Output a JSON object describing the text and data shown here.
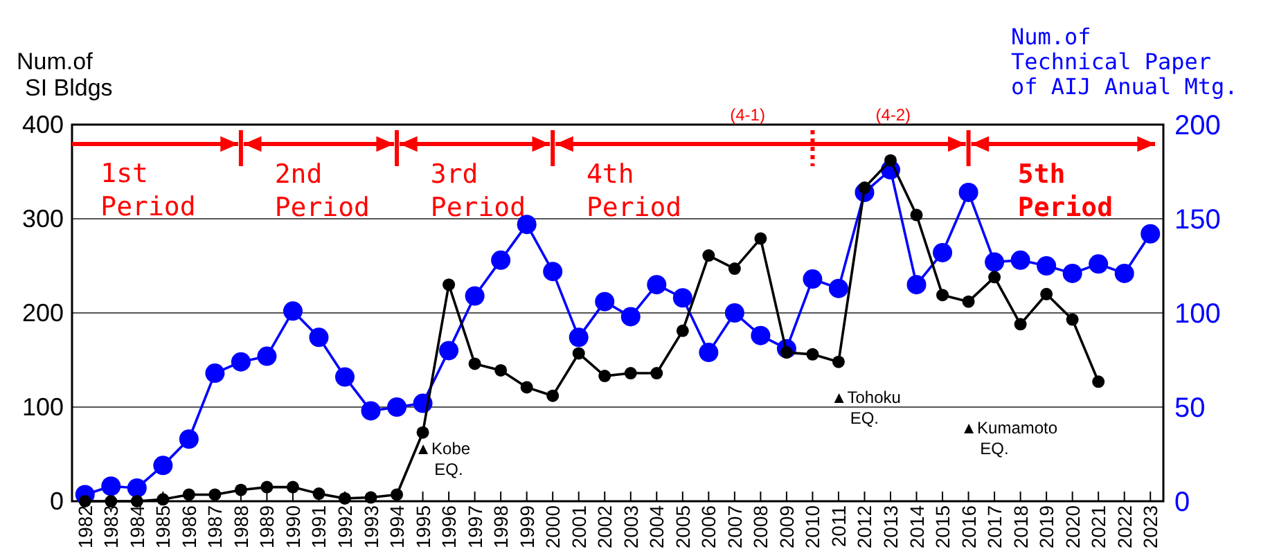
{
  "chart_data": {
    "type": "line",
    "ylabel": "Num.of\nSI Bldgs",
    "y2label": "Num.of\nTechnical Paper\nof AIJ Anual Mtg.",
    "categories": [
      "1982",
      "1983",
      "1984",
      "1985",
      "1986",
      "1987",
      "1988",
      "1989",
      "1990",
      "1991",
      "1992",
      "1993",
      "1994",
      "1995",
      "1996",
      "1997",
      "1998",
      "1999",
      "2000",
      "2001",
      "2002",
      "2003",
      "2004",
      "2005",
      "2006",
      "2007",
      "2008",
      "2009",
      "2010",
      "2011",
      "2012",
      "2013",
      "2014",
      "2015",
      "2016",
      "2017",
      "2018",
      "2019",
      "2020",
      "2021",
      "2022",
      "2023"
    ],
    "series": [
      {
        "color": "#000000",
        "values": [
          0,
          0,
          0,
          2,
          7,
          7,
          12,
          15,
          15,
          8,
          3,
          4,
          7,
          73,
          230,
          146,
          139,
          121,
          112,
          157,
          133,
          136,
          136,
          181,
          261,
          247,
          279,
          158,
          156,
          148,
          333,
          362,
          304,
          219,
          212,
          238,
          188,
          220,
          193,
          127,
          null,
          null
        ]
      },
      {
        "color": "#0000ff",
        "axis": "y2",
        "values": [
          3.5,
          8,
          7,
          19,
          33,
          68,
          74,
          77,
          101,
          87,
          66,
          48,
          50,
          52,
          80,
          109,
          128,
          147,
          122,
          87,
          106,
          98,
          115,
          108,
          79,
          100,
          88,
          81,
          118,
          113,
          164,
          176,
          115,
          132,
          164,
          127,
          128,
          125,
          121,
          126,
          121,
          142
        ]
      }
    ],
    "ylim": [
      0,
      400
    ],
    "yticks": [
      0,
      100,
      200,
      300,
      400
    ],
    "y2lim": [
      0,
      200
    ],
    "y2ticks": [
      0,
      50,
      100,
      150,
      200
    ],
    "grid": "y",
    "marker": "circle",
    "line_style": "solid",
    "ref_lines": [
      {
        "axis": "x",
        "value": "1988",
        "color": "#ff0000",
        "line_style": "solid"
      },
      {
        "axis": "x",
        "value": "1994",
        "color": "#ff0000",
        "line_style": "solid"
      },
      {
        "axis": "x",
        "value": "2000",
        "color": "#ff0000",
        "line_style": "solid"
      },
      {
        "axis": "x",
        "value": "2016",
        "color": "#ff0000",
        "line_style": "solid"
      },
      {
        "axis": "x",
        "value": "2010",
        "color": "#ff0000",
        "line_style": "dotted"
      }
    ],
    "annotations": [
      {
        "text": "1st\nPeriod",
        "x": "1988",
        "y": 380
      },
      "2nd\nPeriod",
      "3rd\nPeriod",
      "4th\nPeriod",
      "5th\nPeriod",
      "(4-1)",
      "(4-2)",
      "▲Kobe\nEQ.",
      "▲Tohoku\nEQ.",
      "▲Kumamoto\nEQ."
    ]
  }
}
